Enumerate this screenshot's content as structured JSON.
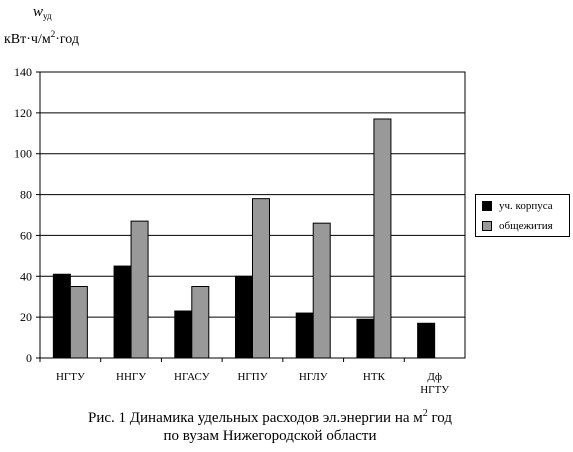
{
  "chart_data": {
    "type": "bar",
    "ylabel_symbol": "w",
    "ylabel_subscript": "уд",
    "ylabel_unit_pre": "кВт·ч/м",
    "ylabel_unit_sup": "2",
    "ylabel_unit_post": "·год",
    "ylim": [
      0,
      140
    ],
    "yticks": [
      0,
      20,
      40,
      60,
      80,
      100,
      120,
      140
    ],
    "grid": true,
    "legend_position": "right",
    "categories": [
      "НГТУ",
      "ННГУ",
      "НГАСУ",
      "НГПУ",
      "НГЛУ",
      "НТК",
      "Дф НГТУ"
    ],
    "series": [
      {
        "name": "уч. корпуса",
        "color": "#000000",
        "values": [
          41,
          45,
          23,
          40,
          22,
          19,
          17
        ]
      },
      {
        "name": "общежития",
        "color": "#999999",
        "values": [
          35,
          67,
          35,
          78,
          66,
          117,
          null
        ]
      }
    ],
    "caption_line1_pre": "Рис. 1 Динамика удельных расходов эл.энергии на м",
    "caption_line1_sup": "2",
    "caption_line1_post": " год",
    "caption_line2": "по вузам Нижегородской области"
  }
}
